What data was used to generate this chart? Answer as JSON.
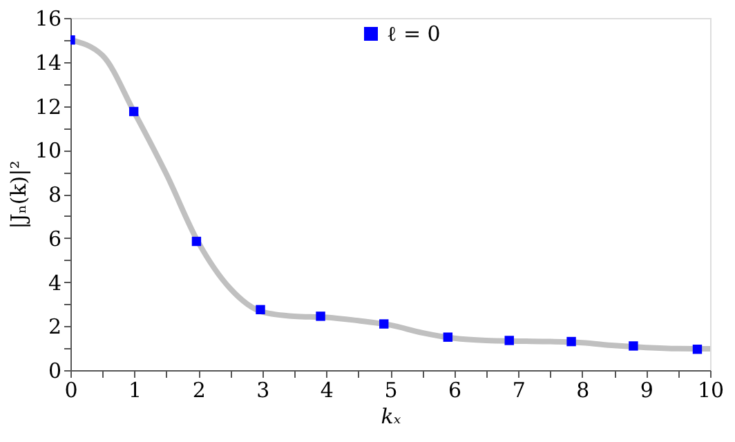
{
  "chart_data": {
    "type": "scatter",
    "xlabel": "kₓ",
    "ylabel": "|Jₙ(k)|²",
    "xlim": [
      0,
      10
    ],
    "ylim": [
      0,
      16
    ],
    "xticks": [
      0,
      {
        "value": 0.5,
        "label": null
      },
      1,
      {
        "value": 1.5,
        "label": null
      },
      2,
      {
        "value": 2.5,
        "label": null
      },
      3,
      {
        "value": 3.5,
        "label": null
      },
      4,
      {
        "value": 4.5,
        "label": null
      },
      5,
      {
        "value": 5.5,
        "label": null
      },
      6,
      {
        "value": 6.5,
        "label": null
      },
      7,
      {
        "value": 7.5,
        "label": null
      },
      8,
      {
        "value": 8.5,
        "label": null
      },
      9,
      {
        "value": 9.5,
        "label": null
      },
      10
    ],
    "yticks": [
      0,
      {
        "value": 1,
        "label": null
      },
      2,
      {
        "value": 3,
        "label": null
      },
      4,
      {
        "value": 5,
        "label": null
      },
      6,
      {
        "value": 7,
        "label": null
      },
      8,
      {
        "value": 9,
        "label": null
      },
      10,
      {
        "value": 11,
        "label": null
      },
      12,
      {
        "value": 13,
        "label": null
      },
      14,
      {
        "value": 15,
        "label": null
      },
      16
    ],
    "grid": false,
    "legend": "top",
    "series": [
      {
        "type": "line",
        "color": "#c0c0c0",
        "line_style": "solid",
        "x": [
          0,
          0.5,
          1,
          1.5,
          2,
          2.5,
          3,
          3.5,
          4,
          4.5,
          5,
          5.5,
          6,
          6.5,
          7,
          7.5,
          8,
          8.5,
          9,
          9.5,
          10
        ],
        "values": [
          15,
          14.3,
          11.7,
          8.9,
          5.8,
          3.7,
          2.65,
          2.45,
          2.4,
          2.25,
          2.05,
          1.7,
          1.45,
          1.35,
          1.32,
          1.3,
          1.25,
          1.12,
          1.03,
          0.98,
          0.97
        ]
      },
      {
        "name": "ℓ =  0",
        "color": "#0000ff",
        "marker": "square",
        "x": [
          0,
          0.99,
          1.97,
          2.97,
          3.91,
          4.9,
          5.9,
          6.86,
          7.83,
          8.8,
          9.8
        ],
        "values": [
          15,
          11.75,
          5.85,
          2.75,
          2.45,
          2.1,
          1.5,
          1.35,
          1.3,
          1.1,
          0.95
        ]
      }
    ]
  }
}
